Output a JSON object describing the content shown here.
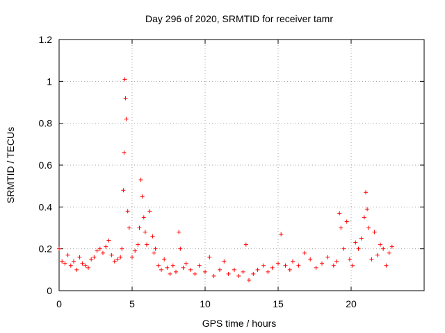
{
  "chart_data": {
    "type": "scatter",
    "title": "Day 296 of 2020, SRMTID for receiver tamr",
    "xlabel": "GPS time / hours",
    "ylabel": "SRMTID / TECUs",
    "xlim": [
      0,
      25
    ],
    "ylim": [
      0,
      1.2
    ],
    "xticks": [
      0,
      5,
      10,
      15,
      20
    ],
    "xtick_labels": [
      "0",
      "5",
      "10",
      "15",
      "20"
    ],
    "yticks": [
      0,
      0.2,
      0.4,
      0.6,
      0.8,
      1,
      1.2
    ],
    "ytick_labels": [
      "0",
      "0.2",
      "0.4",
      "0.6",
      "0.8",
      "1",
      "1.2"
    ],
    "grid": true,
    "marker": "+",
    "color": "#ff0000",
    "series": [
      {
        "name": "SRMTID",
        "x": [
          0.0,
          0.2,
          0.4,
          0.6,
          0.8,
          1.0,
          1.2,
          1.4,
          1.6,
          1.8,
          2.0,
          2.2,
          2.4,
          2.6,
          2.8,
          3.0,
          3.2,
          3.4,
          3.6,
          3.8,
          4.0,
          4.2,
          4.3,
          4.4,
          4.45,
          4.5,
          4.55,
          4.6,
          4.7,
          4.8,
          5.0,
          5.2,
          5.4,
          5.5,
          5.6,
          5.7,
          5.8,
          5.9,
          6.0,
          6.2,
          6.4,
          6.5,
          6.6,
          6.8,
          7.0,
          7.2,
          7.4,
          7.6,
          7.8,
          8.0,
          8.2,
          8.3,
          8.5,
          8.7,
          9.0,
          9.3,
          9.6,
          10.0,
          10.3,
          10.6,
          11.0,
          11.3,
          11.6,
          12.0,
          12.3,
          12.6,
          12.8,
          13.0,
          13.3,
          13.6,
          14.0,
          14.3,
          14.6,
          15.0,
          15.2,
          15.5,
          15.8,
          16.0,
          16.4,
          16.8,
          17.2,
          17.6,
          18.0,
          18.4,
          18.8,
          19.0,
          19.2,
          19.3,
          19.5,
          19.7,
          19.9,
          20.1,
          20.3,
          20.5,
          20.7,
          20.9,
          21.0,
          21.1,
          21.2,
          21.4,
          21.6,
          21.8,
          22.0,
          22.2,
          22.4,
          22.6,
          22.8
        ],
        "y": [
          0.2,
          0.14,
          0.13,
          0.17,
          0.12,
          0.14,
          0.1,
          0.16,
          0.13,
          0.12,
          0.11,
          0.15,
          0.16,
          0.19,
          0.2,
          0.18,
          0.21,
          0.24,
          0.17,
          0.14,
          0.15,
          0.16,
          0.2,
          0.48,
          0.66,
          1.01,
          0.92,
          0.82,
          0.38,
          0.3,
          0.16,
          0.19,
          0.22,
          0.3,
          0.53,
          0.45,
          0.35,
          0.28,
          0.22,
          0.38,
          0.26,
          0.18,
          0.2,
          0.12,
          0.1,
          0.15,
          0.11,
          0.08,
          0.12,
          0.09,
          0.28,
          0.2,
          0.11,
          0.13,
          0.1,
          0.08,
          0.12,
          0.09,
          0.16,
          0.07,
          0.1,
          0.14,
          0.08,
          0.1,
          0.07,
          0.09,
          0.22,
          0.05,
          0.08,
          0.1,
          0.12,
          0.09,
          0.11,
          0.13,
          0.27,
          0.12,
          0.1,
          0.14,
          0.12,
          0.18,
          0.15,
          0.11,
          0.13,
          0.16,
          0.12,
          0.14,
          0.37,
          0.3,
          0.2,
          0.33,
          0.15,
          0.12,
          0.23,
          0.2,
          0.25,
          0.35,
          0.47,
          0.39,
          0.3,
          0.15,
          0.28,
          0.17,
          0.22,
          0.2,
          0.12,
          0.18,
          0.21
        ]
      }
    ]
  }
}
